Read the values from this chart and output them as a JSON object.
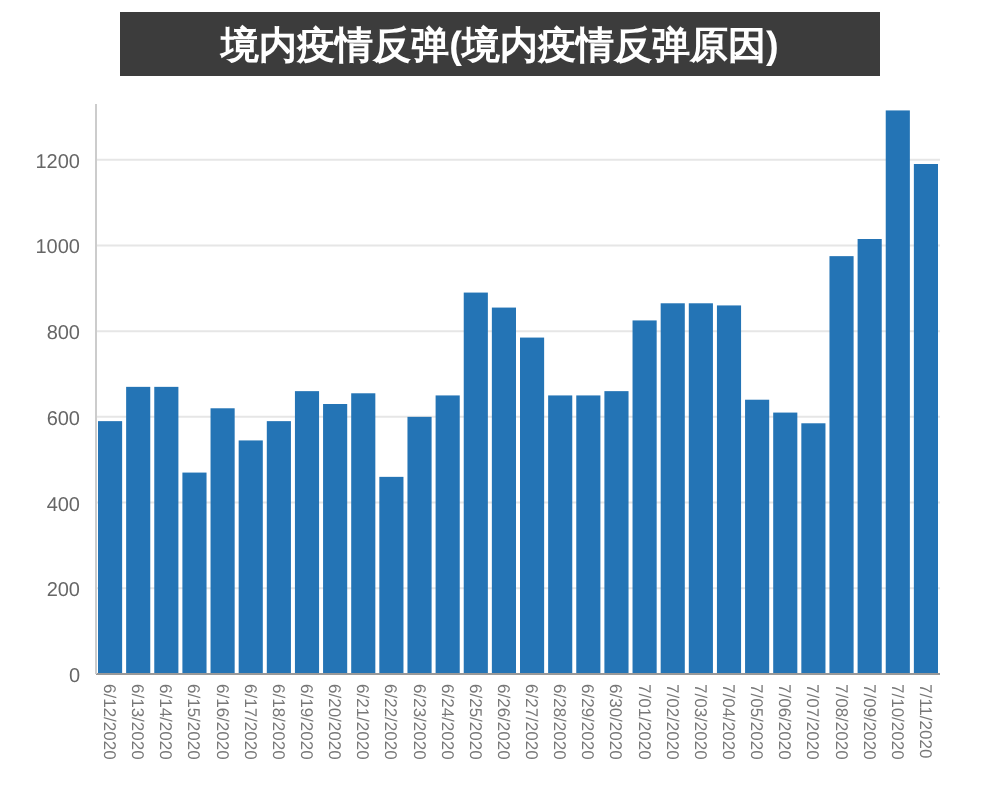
{
  "chart_data": {
    "type": "bar",
    "title": "境内疫情反弹(境内疫情反弹原因)",
    "categories": [
      "6/12/2020",
      "6/13/2020",
      "6/14/2020",
      "6/15/2020",
      "6/16/2020",
      "6/17/2020",
      "6/18/2020",
      "6/19/2020",
      "6/20/2020",
      "6/21/2020",
      "6/22/2020",
      "6/23/2020",
      "6/24/2020",
      "6/25/2020",
      "6/26/2020",
      "6/27/2020",
      "6/28/2020",
      "6/29/2020",
      "6/30/2020",
      "7/01/2020",
      "7/02/2020",
      "7/03/2020",
      "7/04/2020",
      "7/05/2020",
      "7/06/2020",
      "7/07/2020",
      "7/08/2020",
      "7/09/2020",
      "7/10/2020",
      "7/11/2020"
    ],
    "values": [
      590,
      670,
      670,
      470,
      620,
      545,
      590,
      660,
      630,
      655,
      460,
      600,
      650,
      890,
      855,
      785,
      650,
      650,
      660,
      825,
      865,
      865,
      860,
      640,
      610,
      585,
      975,
      1015,
      1315,
      1190
    ],
    "color": "#2474b5",
    "ylim": [
      0,
      1330
    ],
    "yticks": [
      0,
      200,
      400,
      600,
      800,
      1000,
      1200
    ],
    "grid": "y"
  }
}
